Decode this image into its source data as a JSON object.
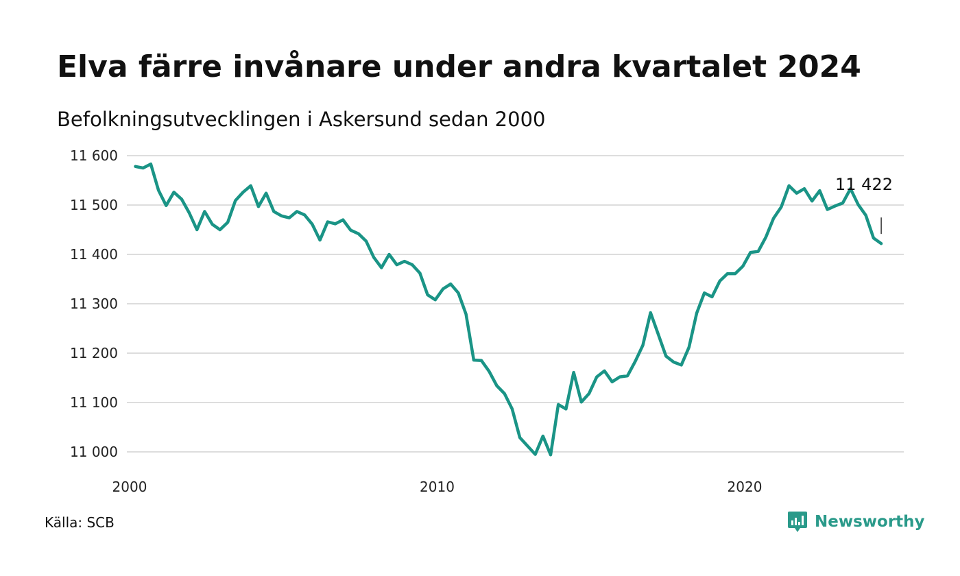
{
  "header": {
    "title": "Elva färre invånare under andra kvartalet 2024",
    "subtitle": "Befolkningsutvecklingen i Askersund sedan 2000"
  },
  "footer": {
    "source": "Källa: SCB",
    "brand": "Newsworthy"
  },
  "colors": {
    "line": "#1a9486",
    "grid": "#dddddd",
    "brand": "#2a9a8a"
  },
  "chart_data": {
    "type": "line",
    "title": "Elva färre invånare under andra kvartalet 2024",
    "subtitle": "Befolkningsutvecklingen i Askersund sedan 2000",
    "xlabel": "",
    "ylabel": "",
    "x_ticks": [
      "2000",
      "2010",
      "2020"
    ],
    "y_ticks": [
      "11 000",
      "11 100",
      "11 200",
      "11 300",
      "11 400",
      "11 500",
      "11 600"
    ],
    "ylim": [
      10990,
      11600
    ],
    "grid": true,
    "legend": "none",
    "end_label": "11 422",
    "series": [
      {
        "x": [
          "2000Q1",
          "2000Q2",
          "2000Q3",
          "2000Q4",
          "2001Q1",
          "2001Q2",
          "2001Q3",
          "2001Q4",
          "2002Q1",
          "2002Q2",
          "2002Q3",
          "2002Q4",
          "2003Q1",
          "2003Q2",
          "2003Q3",
          "2003Q4",
          "2004Q1",
          "2004Q2",
          "2004Q3",
          "2004Q4",
          "2005Q1",
          "2005Q2",
          "2005Q3",
          "2005Q4",
          "2006Q1",
          "2006Q2",
          "2006Q3",
          "2006Q4",
          "2007Q1",
          "2007Q2",
          "2007Q3",
          "2007Q4",
          "2008Q1",
          "2008Q2",
          "2008Q3",
          "2008Q4",
          "2009Q1",
          "2009Q2",
          "2009Q3",
          "2009Q4",
          "2010Q1",
          "2010Q2",
          "2010Q3",
          "2010Q4",
          "2011Q1",
          "2011Q2",
          "2011Q3",
          "2011Q4",
          "2012Q1",
          "2012Q2",
          "2012Q3",
          "2012Q4",
          "2013Q1",
          "2013Q2",
          "2013Q3",
          "2013Q4",
          "2014Q1",
          "2014Q2",
          "2014Q3",
          "2014Q4",
          "2015Q1",
          "2015Q2",
          "2015Q3",
          "2015Q4",
          "2016Q1",
          "2016Q2",
          "2016Q3",
          "2016Q4",
          "2017Q1",
          "2017Q2",
          "2017Q3",
          "2017Q4",
          "2018Q1",
          "2018Q2",
          "2018Q3",
          "2018Q4",
          "2019Q1",
          "2019Q2",
          "2019Q3",
          "2019Q4",
          "2020Q1",
          "2020Q2",
          "2020Q3",
          "2020Q4",
          "2021Q1",
          "2021Q2",
          "2021Q3",
          "2021Q4",
          "2022Q1",
          "2022Q2",
          "2022Q3",
          "2022Q4",
          "2023Q1",
          "2023Q2",
          "2023Q3",
          "2023Q4",
          "2024Q1",
          "2024Q2"
        ],
        "values": [
          11578,
          11575,
          11583,
          11530,
          11499,
          11526,
          11512,
          11484,
          11450,
          11487,
          11461,
          11450,
          11465,
          11509,
          11526,
          11539,
          11497,
          11524,
          11487,
          11478,
          11474,
          11487,
          11480,
          11461,
          11429,
          11466,
          11462,
          11470,
          11449,
          11442,
          11427,
          11394,
          11373,
          11400,
          11379,
          11386,
          11379,
          11362,
          11318,
          11308,
          11330,
          11340,
          11322,
          11279,
          11186,
          11185,
          11163,
          11134,
          11118,
          11087,
          11029,
          11012,
          10995,
          11032,
          10994,
          11096,
          11087,
          11161,
          11101,
          11118,
          11152,
          11164,
          11142,
          11152,
          11154,
          11183,
          11216,
          11282,
          11238,
          11194,
          11182,
          11176,
          11212,
          11281,
          11322,
          11314,
          11346,
          11361,
          11361,
          11376,
          11404,
          11406,
          11435,
          11473,
          11496,
          11539,
          11524,
          11533,
          11508,
          11529,
          11491,
          11498,
          11504,
          11533,
          11501,
          11479,
          11433,
          11422
        ]
      }
    ]
  }
}
